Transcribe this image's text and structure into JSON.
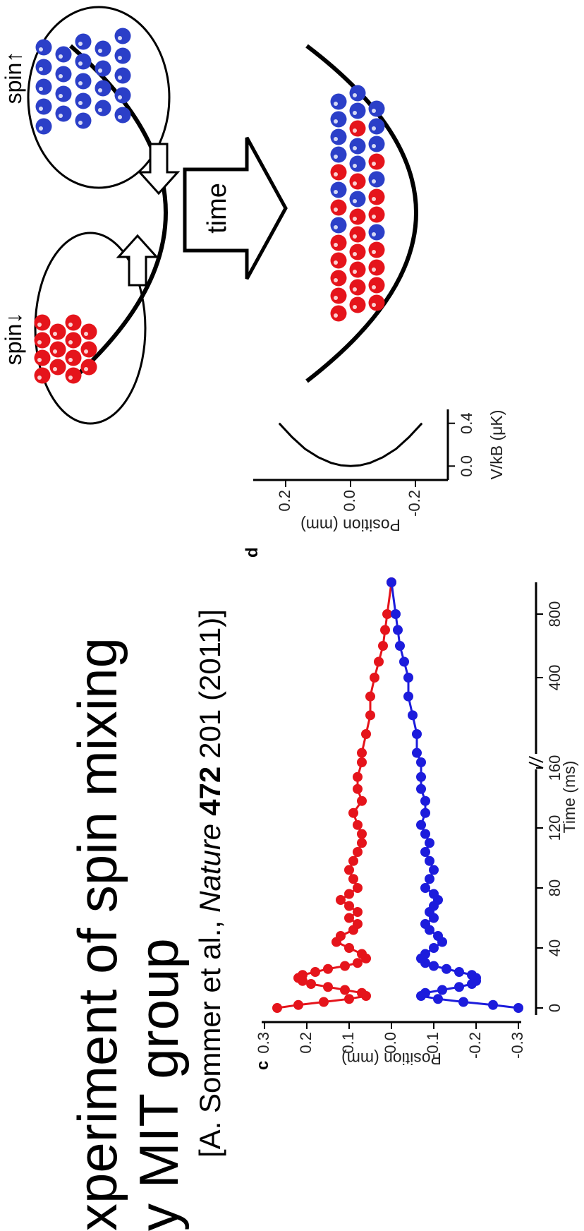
{
  "slide": {
    "title_lines": [
      "xperiment of spin mixing",
      "y MIT group"
    ],
    "citation": [
      "[A. Sommer et al.,",
      "Nature",
      "472",
      "201 (2011)]"
    ]
  },
  "diagram": {
    "spin_down": "spin↓",
    "spin_up": "spin↑",
    "arrow": "time"
  },
  "chart_data": [
    {
      "type": "line",
      "panel_label": "c",
      "x_label": "Time (ms)",
      "y_label": "Position (mm)",
      "markers": true,
      "x": [
        0,
        2,
        4,
        6,
        8,
        10,
        12,
        14,
        16,
        18,
        20,
        22,
        24,
        26,
        28,
        30,
        33,
        36,
        40,
        44,
        48,
        52,
        56,
        60,
        64,
        68,
        72,
        76,
        80,
        86,
        92,
        98,
        104,
        110,
        116,
        122,
        130,
        138,
        146,
        154,
        175,
        200,
        250,
        300,
        350,
        400,
        500,
        600,
        700,
        800,
        1000
      ],
      "xlim": [
        0,
        1000
      ],
      "xticks": [
        0,
        40,
        80,
        120,
        160,
        400,
        800
      ],
      "ylim": [
        -0.3,
        0.3
      ],
      "yticks": [
        0.3,
        0.2,
        0.1,
        {
          "value": 0,
          "label": "0.0"
        },
        -0.1,
        -0.2,
        -0.3
      ],
      "series": [
        {
          "color": "#e5141b",
          "values": [
            0.27,
            0.22,
            0.16,
            0.1,
            0.06,
            0.07,
            0.11,
            0.15,
            0.19,
            0.21,
            0.22,
            0.21,
            0.18,
            0.15,
            0.11,
            0.08,
            0.06,
            0.07,
            0.1,
            0.13,
            0.12,
            0.09,
            0.08,
            0.1,
            0.08,
            0.1,
            0.12,
            0.1,
            0.08,
            0.09,
            0.1,
            0.09,
            0.08,
            0.07,
            0.07,
            0.08,
            0.09,
            0.07,
            0.08,
            0.08,
            0.07,
            0.07,
            0.06,
            0.05,
            0.05,
            0.04,
            0.03,
            0.02,
            0.015,
            0.01,
            0.0
          ]
        },
        {
          "color": "#1c1cdc",
          "values": [
            -0.3,
            -0.24,
            -0.17,
            -0.11,
            -0.07,
            -0.08,
            -0.12,
            -0.16,
            -0.19,
            -0.2,
            -0.2,
            -0.19,
            -0.16,
            -0.13,
            -0.1,
            -0.08,
            -0.07,
            -0.08,
            -0.1,
            -0.12,
            -0.11,
            -0.09,
            -0.08,
            -0.1,
            -0.09,
            -0.1,
            -0.11,
            -0.1,
            -0.08,
            -0.09,
            -0.1,
            -0.09,
            -0.08,
            -0.09,
            -0.08,
            -0.07,
            -0.08,
            -0.08,
            -0.07,
            -0.07,
            -0.07,
            -0.06,
            -0.06,
            -0.05,
            -0.04,
            -0.04,
            -0.03,
            -0.02,
            -0.015,
            -0.01,
            0.0
          ]
        }
      ]
    },
    {
      "type": "line",
      "panel_label": "d",
      "x_label": "V/kB (μK)",
      "y_label": "Position (mm)",
      "x": [
        0.4,
        0.27,
        0.16,
        0.083,
        0.03,
        0.007,
        0,
        0.007,
        0.03,
        0.083,
        0.16,
        0.27,
        0.4
      ],
      "values": [
        -0.22,
        -0.18,
        -0.14,
        -0.1,
        -0.06,
        -0.03,
        0,
        0.03,
        0.06,
        0.1,
        0.14,
        0.18,
        0.22
      ],
      "color": "#000000",
      "xlim": [
        -0.13,
        0.53
      ],
      "xticks": [
        {
          "value": 0,
          "label": "0.0"
        },
        0.4
      ],
      "ylim": [
        -0.3,
        0.3
      ],
      "yticks": [
        0.2,
        {
          "value": 0,
          "label": "0.0"
        },
        -0.2
      ]
    }
  ]
}
